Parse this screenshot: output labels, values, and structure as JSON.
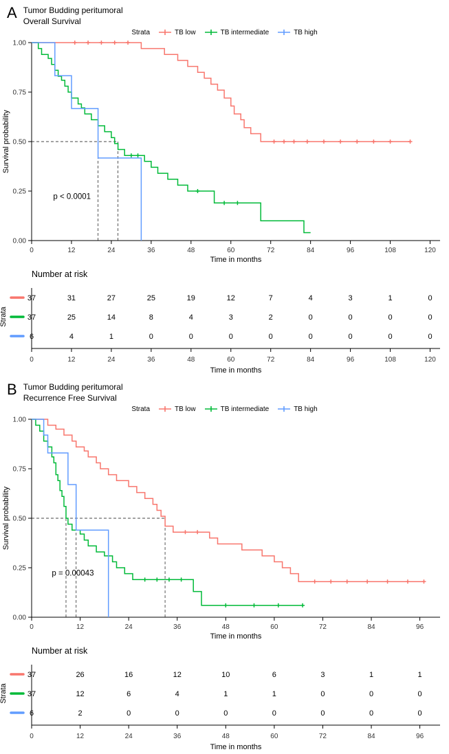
{
  "panels": [
    {
      "label": "A",
      "title_line1": "Tumor Budding peritumoral",
      "title_line2": "Overall Survival",
      "legend_title": "Strata",
      "legend_items": [
        {
          "label": "TB low",
          "color": "#F8766D"
        },
        {
          "label": "TB intermediate",
          "color": "#00BA38"
        },
        {
          "label": "TB high",
          "color": "#619CFF"
        }
      ],
      "risk_title": "Number at risk"
    },
    {
      "label": "B",
      "title_line1": "Tumor Budding peritumoral",
      "title_line2": "Recurrence Free Survival",
      "legend_title": "Strata",
      "legend_items": [
        {
          "label": "TB low",
          "color": "#F8766D"
        },
        {
          "label": "TB intermediate",
          "color": "#00BA38"
        },
        {
          "label": "TB high",
          "color": "#619CFF"
        }
      ],
      "risk_title": "Number at risk"
    }
  ],
  "chart_data": [
    {
      "type": "line",
      "subtype": "kaplan-meier-step",
      "title": "Tumor Budding peritumoral - Overall Survival",
      "xlabel": "Time in months",
      "ylabel": "Survival probability",
      "strata_label": "Strata",
      "x_scale_max": 123,
      "ylim": [
        0,
        1
      ],
      "xticks": [
        0,
        12,
        24,
        36,
        48,
        60,
        72,
        84,
        96,
        108,
        120
      ],
      "yticks": [
        {
          "v": 1,
          "label": "1.00"
        },
        {
          "v": 0.75,
          "label": "0.75"
        },
        {
          "v": 0.5,
          "label": "0.50"
        },
        {
          "v": 0.25,
          "label": "0.25"
        },
        {
          "v": 0,
          "label": "0.00"
        }
      ],
      "p_value": "p < 0.0001",
      "p_value_pos": [
        6.5,
        0.21
      ],
      "medians": [
        20,
        26
      ],
      "series": [
        {
          "name": "TB low",
          "color": "#F8766D",
          "points": [
            [
              0,
              1.0
            ],
            [
              33,
              0.97
            ],
            [
              40,
              0.94
            ],
            [
              44,
              0.91
            ],
            [
              47,
              0.88
            ],
            [
              50,
              0.85
            ],
            [
              52,
              0.82
            ],
            [
              54,
              0.79
            ],
            [
              56,
              0.76
            ],
            [
              58,
              0.72
            ],
            [
              60,
              0.68
            ],
            [
              61,
              0.64
            ],
            [
              63,
              0.61
            ],
            [
              64,
              0.57
            ],
            [
              66,
              0.54
            ],
            [
              69,
              0.5
            ]
          ],
          "end": 114,
          "censors": [
            [
              13,
              1
            ],
            [
              17,
              1
            ],
            [
              21,
              1
            ],
            [
              25,
              1
            ],
            [
              29,
              1
            ],
            [
              73,
              0.5
            ],
            [
              76,
              0.5
            ],
            [
              79,
              0.5
            ],
            [
              83,
              0.5
            ],
            [
              88,
              0.5
            ],
            [
              93,
              0.5
            ],
            [
              98,
              0.5
            ],
            [
              103,
              0.5
            ],
            [
              108,
              0.5
            ],
            [
              114,
              0.5
            ]
          ]
        },
        {
          "name": "TB intermediate",
          "color": "#00BA38",
          "points": [
            [
              0,
              1.0
            ],
            [
              2,
              0.97
            ],
            [
              3,
              0.94
            ],
            [
              5,
              0.92
            ],
            [
              6,
              0.89
            ],
            [
              7,
              0.86
            ],
            [
              8,
              0.83
            ],
            [
              9,
              0.81
            ],
            [
              10,
              0.78
            ],
            [
              11,
              0.75
            ],
            [
              12,
              0.72
            ],
            [
              14,
              0.69
            ],
            [
              15,
              0.67
            ],
            [
              16,
              0.64
            ],
            [
              18,
              0.61
            ],
            [
              20,
              0.58
            ],
            [
              22,
              0.55
            ],
            [
              24,
              0.52
            ],
            [
              25,
              0.49
            ],
            [
              26,
              0.46
            ],
            [
              28,
              0.43
            ],
            [
              34,
              0.4
            ],
            [
              36,
              0.37
            ],
            [
              38,
              0.34
            ],
            [
              41,
              0.31
            ],
            [
              44,
              0.28
            ],
            [
              47,
              0.25
            ],
            [
              55,
              0.19
            ],
            [
              69,
              0.1
            ],
            [
              82,
              0.04
            ]
          ],
          "end": 84,
          "censors": [
            [
              30,
              0.43
            ],
            [
              32,
              0.43
            ],
            [
              50,
              0.25
            ],
            [
              58,
              0.19
            ],
            [
              62,
              0.19
            ]
          ]
        },
        {
          "name": "TB high",
          "color": "#619CFF",
          "points": [
            [
              0,
              1.0
            ],
            [
              7,
              0.833
            ],
            [
              12,
              0.667
            ],
            [
              20,
              0.417
            ],
            [
              33,
              0
            ]
          ],
          "end": 33,
          "censors": []
        }
      ],
      "risk_table": {
        "title": "Number at risk",
        "times": [
          0,
          12,
          24,
          36,
          48,
          60,
          72,
          84,
          96,
          108,
          120
        ],
        "rows": [
          {
            "name": "TB low",
            "color": "#F8766D",
            "counts": [
              37,
              31,
              27,
              25,
              19,
              12,
              7,
              4,
              3,
              1,
              0
            ]
          },
          {
            "name": "TB intermediate",
            "color": "#00BA38",
            "counts": [
              37,
              25,
              14,
              8,
              4,
              3,
              2,
              0,
              0,
              0,
              0
            ]
          },
          {
            "name": "TB high",
            "color": "#619CFF",
            "counts": [
              6,
              4,
              1,
              0,
              0,
              0,
              0,
              0,
              0,
              0,
              0
            ]
          }
        ]
      }
    },
    {
      "type": "line",
      "subtype": "kaplan-meier-step",
      "title": "Tumor Budding peritumoral - Recurrence Free Survival",
      "xlabel": "Time in months",
      "ylabel": "Survival probability",
      "strata_label": "Strata",
      "x_scale_max": 101,
      "ylim": [
        0,
        1
      ],
      "xticks": [
        0,
        12,
        24,
        36,
        48,
        60,
        72,
        84,
        96
      ],
      "yticks": [
        {
          "v": 1,
          "label": "1.00"
        },
        {
          "v": 0.75,
          "label": "0.75"
        },
        {
          "v": 0.5,
          "label": "0.50"
        },
        {
          "v": 0.25,
          "label": "0.25"
        },
        {
          "v": 0,
          "label": "0.00"
        }
      ],
      "p_value": "p = 0.00043",
      "p_value_pos": [
        5,
        0.21
      ],
      "medians": [
        8.5,
        11,
        33
      ],
      "series": [
        {
          "name": "TB low",
          "color": "#F8766D",
          "points": [
            [
              0,
              1.0
            ],
            [
              4,
              0.97
            ],
            [
              6,
              0.95
            ],
            [
              8,
              0.92
            ],
            [
              10,
              0.89
            ],
            [
              11,
              0.86
            ],
            [
              13,
              0.84
            ],
            [
              14,
              0.81
            ],
            [
              16,
              0.78
            ],
            [
              17,
              0.75
            ],
            [
              19,
              0.72
            ],
            [
              21,
              0.69
            ],
            [
              24,
              0.66
            ],
            [
              26,
              0.63
            ],
            [
              28,
              0.6
            ],
            [
              30,
              0.57
            ],
            [
              31,
              0.54
            ],
            [
              32,
              0.51
            ],
            [
              33,
              0.46
            ],
            [
              35,
              0.43
            ],
            [
              44,
              0.4
            ],
            [
              46,
              0.37
            ],
            [
              52,
              0.34
            ],
            [
              57,
              0.31
            ],
            [
              60,
              0.28
            ],
            [
              62,
              0.25
            ],
            [
              64,
              0.22
            ],
            [
              66,
              0.18
            ]
          ],
          "end": 97,
          "censors": [
            [
              38,
              0.43
            ],
            [
              41,
              0.43
            ],
            [
              70,
              0.18
            ],
            [
              74,
              0.18
            ],
            [
              78,
              0.18
            ],
            [
              83,
              0.18
            ],
            [
              88,
              0.18
            ],
            [
              93,
              0.18
            ],
            [
              97,
              0.18
            ]
          ]
        },
        {
          "name": "TB intermediate",
          "color": "#00BA38",
          "points": [
            [
              0,
              1.0
            ],
            [
              1,
              0.97
            ],
            [
              2,
              0.94
            ],
            [
              3,
              0.89
            ],
            [
              4,
              0.86
            ],
            [
              5,
              0.81
            ],
            [
              5.5,
              0.78
            ],
            [
              6,
              0.72
            ],
            [
              6.5,
              0.69
            ],
            [
              7,
              0.64
            ],
            [
              7.5,
              0.61
            ],
            [
              8,
              0.56
            ],
            [
              8.5,
              0.5
            ],
            [
              9,
              0.47
            ],
            [
              10,
              0.44
            ],
            [
              12,
              0.42
            ],
            [
              13,
              0.39
            ],
            [
              14,
              0.36
            ],
            [
              16,
              0.33
            ],
            [
              18,
              0.31
            ],
            [
              20,
              0.28
            ],
            [
              21,
              0.25
            ],
            [
              23,
              0.22
            ],
            [
              25,
              0.19
            ],
            [
              40,
              0.13
            ],
            [
              42,
              0.06
            ]
          ],
          "end": 67,
          "censors": [
            [
              28,
              0.19
            ],
            [
              31,
              0.19
            ],
            [
              34,
              0.19
            ],
            [
              37,
              0.19
            ],
            [
              48,
              0.06
            ],
            [
              55,
              0.06
            ],
            [
              61,
              0.06
            ],
            [
              67,
              0.06
            ]
          ]
        },
        {
          "name": "TB high",
          "color": "#619CFF",
          "points": [
            [
              0,
              1.0
            ],
            [
              3,
              0.92
            ],
            [
              4,
              0.83
            ],
            [
              9,
              0.67
            ],
            [
              11,
              0.44
            ],
            [
              19,
              0
            ]
          ],
          "end": 19,
          "censors": []
        }
      ],
      "risk_table": {
        "title": "Number at risk",
        "times": [
          0,
          12,
          24,
          36,
          48,
          60,
          72,
          84,
          96
        ],
        "rows": [
          {
            "name": "TB low",
            "color": "#F8766D",
            "counts": [
              37,
              26,
              16,
              12,
              10,
              6,
              3,
              1,
              1
            ]
          },
          {
            "name": "TB intermediate",
            "color": "#00BA38",
            "counts": [
              37,
              12,
              6,
              4,
              1,
              1,
              0,
              0,
              0
            ]
          },
          {
            "name": "TB high",
            "color": "#619CFF",
            "counts": [
              6,
              2,
              0,
              0,
              0,
              0,
              0,
              0,
              0
            ]
          }
        ]
      }
    }
  ]
}
